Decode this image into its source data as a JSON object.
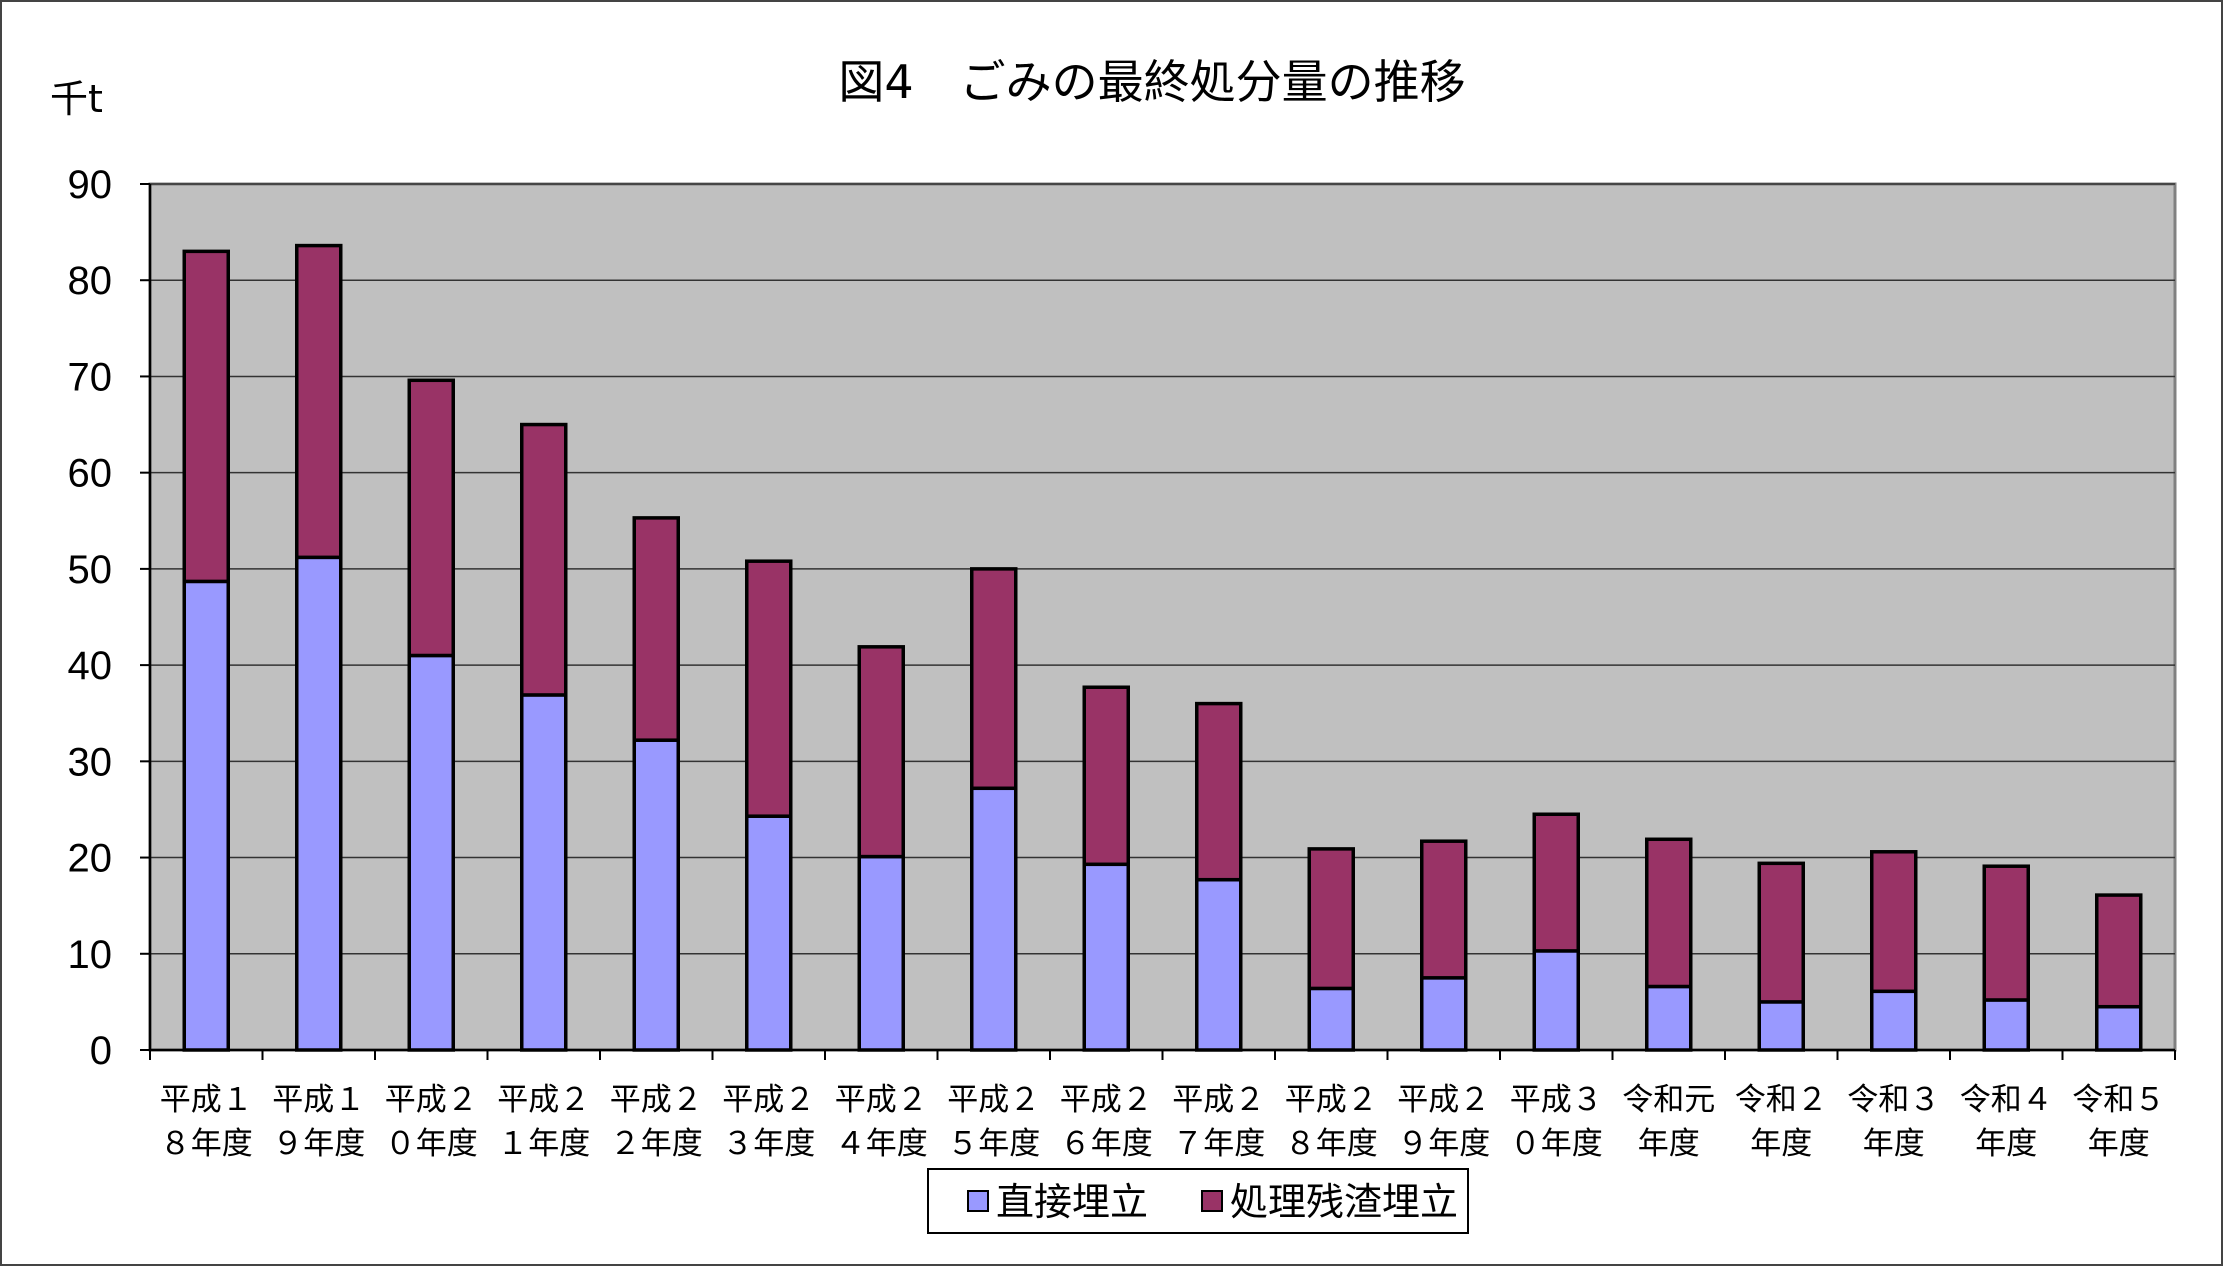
{
  "chart_data": {
    "type": "bar",
    "stacked": true,
    "title": "図4　ごみの最終処分量の推移",
    "ylabel": "千t",
    "xlabel": "",
    "ylim": [
      0,
      90
    ],
    "yticks": [
      0,
      10,
      20,
      30,
      40,
      50,
      60,
      70,
      80,
      90
    ],
    "grid": true,
    "legend_position": "bottom",
    "categories": [
      [
        "平成１",
        "８年度"
      ],
      [
        "平成１",
        "９年度"
      ],
      [
        "平成２",
        "０年度"
      ],
      [
        "平成２",
        "１年度"
      ],
      [
        "平成２",
        "２年度"
      ],
      [
        "平成２",
        "３年度"
      ],
      [
        "平成２",
        "４年度"
      ],
      [
        "平成２",
        "５年度"
      ],
      [
        "平成２",
        "６年度"
      ],
      [
        "平成２",
        "７年度"
      ],
      [
        "平成２",
        "８年度"
      ],
      [
        "平成２",
        "９年度"
      ],
      [
        "平成３",
        "０年度"
      ],
      [
        "令和元",
        "年度"
      ],
      [
        "令和２",
        "年度"
      ],
      [
        "令和３",
        "年度"
      ],
      [
        "令和４",
        "年度"
      ],
      [
        "令和５",
        "年度"
      ]
    ],
    "series": [
      {
        "name": "直接埋立",
        "color": "#9999FF",
        "values": [
          48.7,
          51.2,
          41.0,
          36.9,
          32.2,
          24.3,
          20.1,
          27.2,
          19.3,
          17.7,
          6.4,
          7.5,
          10.3,
          6.6,
          5.0,
          6.1,
          5.2,
          4.5
        ]
      },
      {
        "name": "処理残渣埋立",
        "color": "#993366",
        "values": [
          34.3,
          32.4,
          28.6,
          28.1,
          23.1,
          26.5,
          21.8,
          22.8,
          18.4,
          18.3,
          14.5,
          14.2,
          14.2,
          15.3,
          14.4,
          14.5,
          13.9,
          11.6
        ]
      }
    ],
    "plot_background": "#C0C0C0",
    "grid_color": "#333333"
  }
}
